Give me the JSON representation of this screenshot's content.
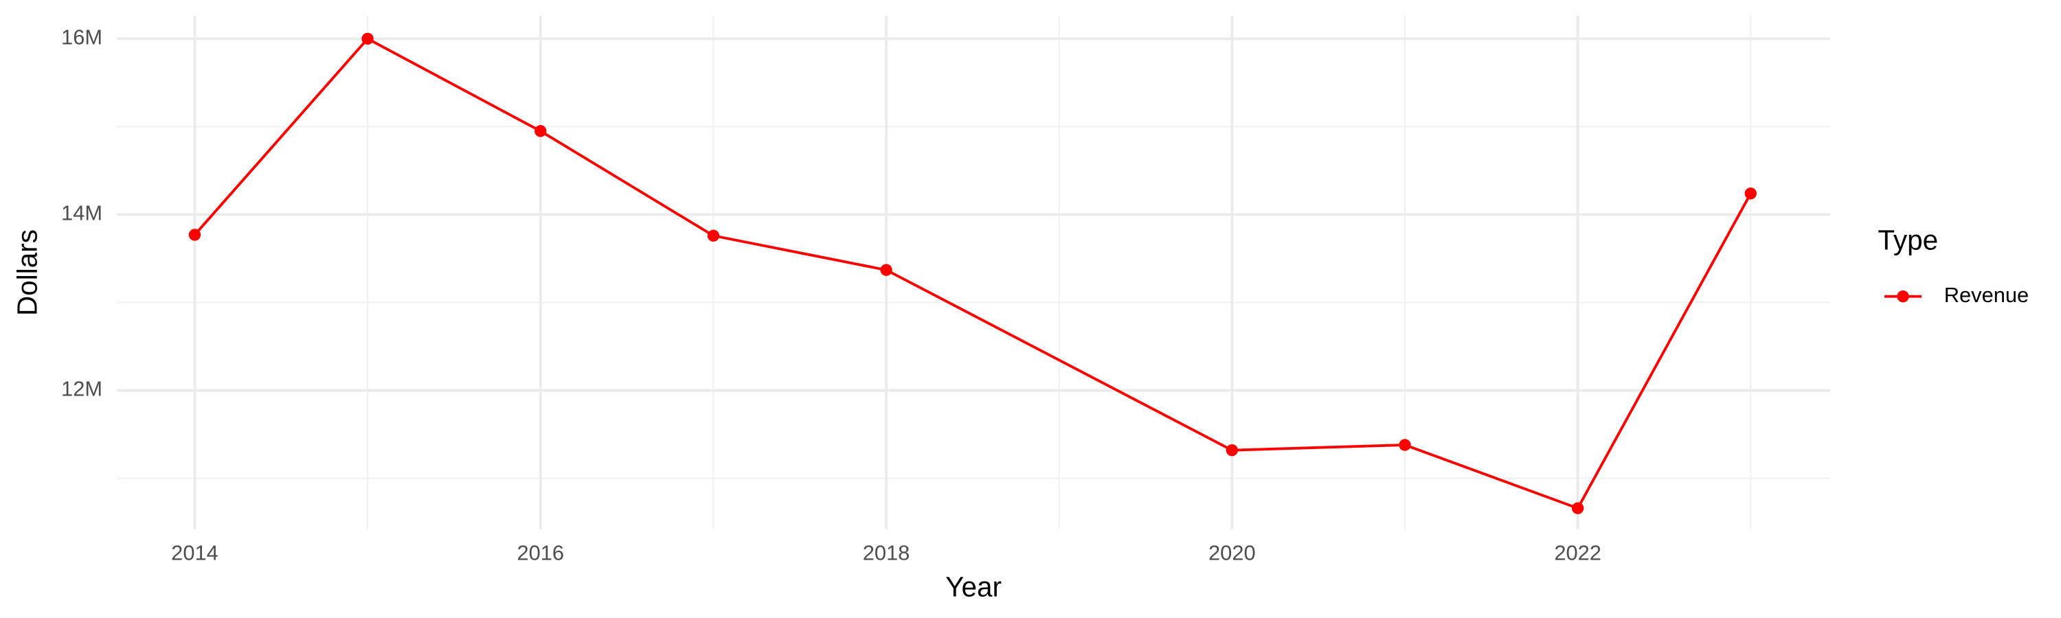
{
  "chart_data": {
    "type": "line",
    "x_label": "Year",
    "y_label": "Dollars",
    "legend_title": "Type",
    "legend_position": "right",
    "x": [
      2014,
      2015,
      2016,
      2017,
      2018,
      2020,
      2021,
      2022,
      2023
    ],
    "series": [
      {
        "name": "Revenue",
        "color": "#ff0000",
        "values": [
          13770000,
          16000000,
          14950000,
          13760000,
          13370000,
          11320000,
          11380000,
          10660000,
          14240000
        ]
      }
    ],
    "xlim": [
      2013.55,
      2023.46
    ],
    "xticks": [
      2014,
      2016,
      2018,
      2020,
      2022
    ],
    "ylim": [
      10420000,
      16260000
    ],
    "yticks": [
      {
        "value": 12000000,
        "label": "12M"
      },
      {
        "value": 14000000,
        "label": "14M"
      },
      {
        "value": 16000000,
        "label": "16M"
      }
    ],
    "grid": true
  }
}
